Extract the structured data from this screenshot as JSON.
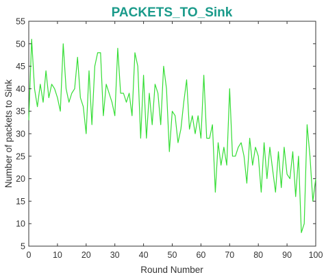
{
  "chart_data": {
    "type": "line",
    "title": "PACKETS_TO_Sink",
    "xlabel": "Round Number",
    "ylabel": "Number of packets to Sink",
    "xlim": [
      0,
      100
    ],
    "ylim": [
      5,
      55
    ],
    "xticks": [
      0,
      10,
      20,
      30,
      40,
      50,
      60,
      70,
      80,
      90,
      100
    ],
    "yticks": [
      5,
      10,
      15,
      20,
      25,
      30,
      35,
      40,
      45,
      50,
      55
    ],
    "grid": false,
    "legend": "none",
    "series": [
      {
        "color": "#33dd33",
        "x": [
          0,
          1,
          2,
          3,
          4,
          5,
          6,
          7,
          8,
          9,
          10,
          11,
          12,
          13,
          14,
          15,
          16,
          17,
          18,
          19,
          20,
          21,
          22,
          23,
          24,
          25,
          26,
          27,
          28,
          29,
          30,
          31,
          32,
          33,
          34,
          35,
          36,
          37,
          38,
          39,
          40,
          41,
          42,
          43,
          44,
          45,
          46,
          47,
          48,
          49,
          50,
          51,
          52,
          53,
          54,
          55,
          56,
          57,
          58,
          59,
          60,
          61,
          62,
          63,
          64,
          65,
          66,
          67,
          68,
          69,
          70,
          71,
          72,
          73,
          74,
          75,
          76,
          77,
          78,
          79,
          80,
          81,
          82,
          83,
          84,
          85,
          86,
          87,
          88,
          89,
          90,
          91,
          92,
          93,
          94,
          95,
          96,
          97,
          98,
          99,
          100
        ],
        "values": [
          33,
          51,
          40,
          36,
          41,
          37,
          44,
          38,
          41,
          40,
          38,
          35,
          50,
          40,
          37,
          39,
          40,
          47,
          38,
          36,
          30,
          44,
          32,
          45,
          48,
          48,
          34,
          41,
          39,
          37,
          34,
          49,
          39,
          39,
          37,
          39,
          34,
          48,
          45,
          29,
          43,
          29,
          39,
          32,
          41,
          39,
          32,
          45,
          40,
          26,
          35,
          34,
          28,
          31,
          37,
          42,
          31,
          34,
          30,
          34,
          29,
          43,
          29,
          29,
          32,
          17,
          28,
          23,
          27,
          23,
          40,
          25,
          25,
          27,
          28,
          25,
          19,
          29,
          23,
          27,
          25,
          17,
          28,
          20,
          27,
          22,
          17,
          26,
          18,
          27,
          21,
          20,
          26,
          16,
          25,
          8,
          10,
          32,
          25,
          15,
          20
        ]
      }
    ]
  },
  "colors": {
    "title": "#1a9a8a",
    "line": "#33dd33",
    "axis": "#333333"
  }
}
